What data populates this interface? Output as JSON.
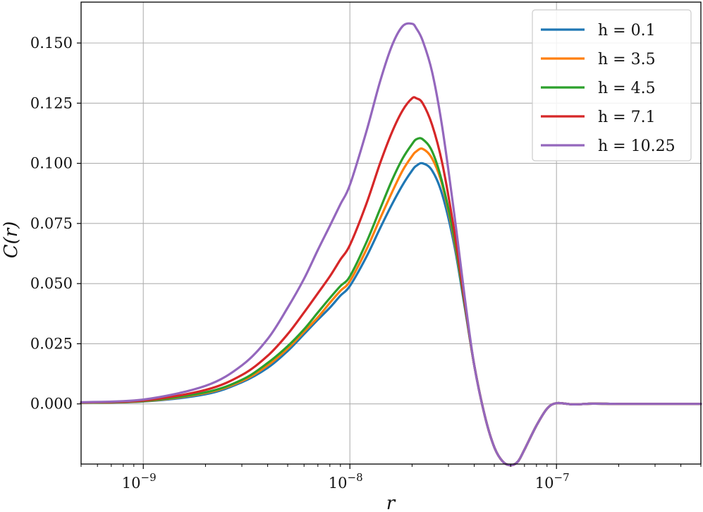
{
  "chart_data": {
    "type": "line",
    "title": "",
    "xlabel": "r",
    "ylabel": "C(r)",
    "x_scale": "log",
    "xlim": [
      5e-10,
      5e-07
    ],
    "ylim": [
      -0.025,
      0.167
    ],
    "grid": true,
    "legend_position": "top-right",
    "x_ticks": [
      {
        "value": 1e-09,
        "base": "10",
        "exp": "−9"
      },
      {
        "value": 1e-08,
        "base": "10",
        "exp": "−8"
      },
      {
        "value": 1e-07,
        "base": "10",
        "exp": "−7"
      }
    ],
    "y_ticks": [
      {
        "value": 0.0,
        "label": "0.000"
      },
      {
        "value": 0.025,
        "label": "0.025"
      },
      {
        "value": 0.05,
        "label": "0.050"
      },
      {
        "value": 0.075,
        "label": "0.075"
      },
      {
        "value": 0.1,
        "label": "0.100"
      },
      {
        "value": 0.125,
        "label": "0.125"
      },
      {
        "value": 0.15,
        "label": "0.150"
      }
    ],
    "x": [
      5e-10,
      1e-09,
      2e-09,
      3e-09,
      4e-09,
      5e-09,
      6e-09,
      7e-09,
      8e-09,
      9e-09,
      1e-08,
      1.2e-08,
      1.4e-08,
      1.6e-08,
      1.8e-08,
      2e-08,
      2.1e-08,
      2.25e-08,
      2.5e-08,
      2.8e-08,
      3.2e-08,
      3.6e-08,
      4e-08,
      4.5e-08,
      5e-08,
      5.5e-08,
      6e-08,
      6.5e-08,
      7e-08,
      8e-08,
      9e-08,
      1e-07,
      1.2e-07,
      1.5e-07,
      2e-07,
      3e-07,
      5e-07
    ],
    "series": [
      {
        "name": "h = 0.1",
        "color": "#1f77b4",
        "values": [
          0.0005,
          0.001,
          0.004,
          0.009,
          0.015,
          0.022,
          0.029,
          0.035,
          0.04,
          0.045,
          0.049,
          0.061,
          0.073,
          0.083,
          0.091,
          0.097,
          0.099,
          0.1,
          0.097,
          0.087,
          0.066,
          0.04,
          0.016,
          -0.005,
          -0.018,
          -0.024,
          -0.0255,
          -0.024,
          -0.019,
          -0.009,
          -0.002,
          0.0003,
          -0.0002,
          0.0001,
          0.0,
          0.0,
          0.0
        ]
      },
      {
        "name": "h = 3.5",
        "color": "#ff7f0e",
        "values": [
          0.0005,
          0.0011,
          0.0045,
          0.0095,
          0.016,
          0.023,
          0.03,
          0.036,
          0.042,
          0.047,
          0.051,
          0.064,
          0.077,
          0.088,
          0.097,
          0.103,
          0.105,
          0.106,
          0.102,
          0.091,
          0.068,
          0.041,
          0.016,
          -0.005,
          -0.018,
          -0.024,
          -0.0255,
          -0.024,
          -0.019,
          -0.009,
          -0.002,
          0.0003,
          -0.0002,
          0.0001,
          0.0,
          0.0,
          0.0
        ]
      },
      {
        "name": "h = 4.5",
        "color": "#2ca02c",
        "values": [
          0.0005,
          0.0012,
          0.0048,
          0.01,
          0.017,
          0.024,
          0.031,
          0.038,
          0.044,
          0.049,
          0.053,
          0.067,
          0.081,
          0.093,
          0.102,
          0.108,
          0.11,
          0.11,
          0.105,
          0.092,
          0.069,
          0.041,
          0.016,
          -0.005,
          -0.018,
          -0.024,
          -0.0255,
          -0.024,
          -0.019,
          -0.009,
          -0.002,
          0.0003,
          -0.0002,
          0.0001,
          0.0,
          0.0,
          0.0
        ]
      },
      {
        "name": "h = 7.1",
        "color": "#d62728",
        "values": [
          0.0006,
          0.0014,
          0.0058,
          0.012,
          0.02,
          0.029,
          0.038,
          0.046,
          0.053,
          0.06,
          0.066,
          0.083,
          0.1,
          0.113,
          0.122,
          0.127,
          0.127,
          0.125,
          0.116,
          0.1,
          0.072,
          0.042,
          0.016,
          -0.005,
          -0.018,
          -0.024,
          -0.0255,
          -0.024,
          -0.019,
          -0.009,
          -0.002,
          0.0003,
          -0.0002,
          0.0001,
          0.0,
          0.0,
          0.0
        ]
      },
      {
        "name": "h = 10.25",
        "color": "#9467bd",
        "values": [
          0.0007,
          0.0018,
          0.0075,
          0.016,
          0.027,
          0.04,
          0.052,
          0.064,
          0.074,
          0.083,
          0.091,
          0.113,
          0.134,
          0.149,
          0.157,
          0.158,
          0.156,
          0.151,
          0.138,
          0.115,
          0.079,
          0.044,
          0.016,
          -0.005,
          -0.018,
          -0.024,
          -0.0255,
          -0.024,
          -0.019,
          -0.009,
          -0.002,
          0.0003,
          -0.0002,
          0.0001,
          0.0,
          0.0,
          0.0
        ]
      }
    ]
  }
}
